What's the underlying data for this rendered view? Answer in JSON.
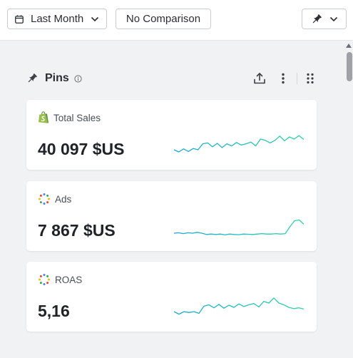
{
  "toolbar": {
    "date_range_label": "Last Month",
    "comparison_label": "No Comparison"
  },
  "pins": {
    "title": "Pins"
  },
  "cards": [
    {
      "label": "Total Sales",
      "value": "40 097 $US",
      "icon": "shopify-icon",
      "spark": [
        0.3,
        0.2,
        0.34,
        0.22,
        0.36,
        0.3,
        0.58,
        0.62,
        0.44,
        0.6,
        0.4,
        0.58,
        0.48,
        0.64,
        0.52,
        0.58,
        0.66,
        0.48,
        0.8,
        0.74,
        0.62,
        0.74,
        0.94,
        0.72,
        0.9,
        0.8,
        0.96,
        0.78
      ]
    },
    {
      "label": "Ads",
      "value": "7 867 $US",
      "icon": "google-ads-icon",
      "spark": [
        0.2,
        0.22,
        0.18,
        0.22,
        0.2,
        0.24,
        0.2,
        0.14,
        0.16,
        0.14,
        0.16,
        0.12,
        0.16,
        0.14,
        0.13,
        0.16,
        0.15,
        0.14,
        0.16,
        0.18,
        0.16,
        0.16,
        0.18,
        0.16,
        0.18,
        0.5,
        0.78,
        0.82,
        0.62
      ]
    },
    {
      "label": "ROAS",
      "value": "5,16",
      "icon": "google-ads-icon",
      "spark": [
        0.3,
        0.18,
        0.3,
        0.26,
        0.3,
        0.22,
        0.56,
        0.62,
        0.48,
        0.64,
        0.46,
        0.6,
        0.5,
        0.66,
        0.54,
        0.62,
        0.68,
        0.52,
        0.78,
        0.7,
        0.94,
        0.7,
        0.62,
        0.5,
        0.44,
        0.48,
        0.42
      ]
    }
  ],
  "colors": {
    "spark_start": "#1aa7d6",
    "spark_end": "#2ed6a4",
    "shopify_green": "#95bf47"
  }
}
